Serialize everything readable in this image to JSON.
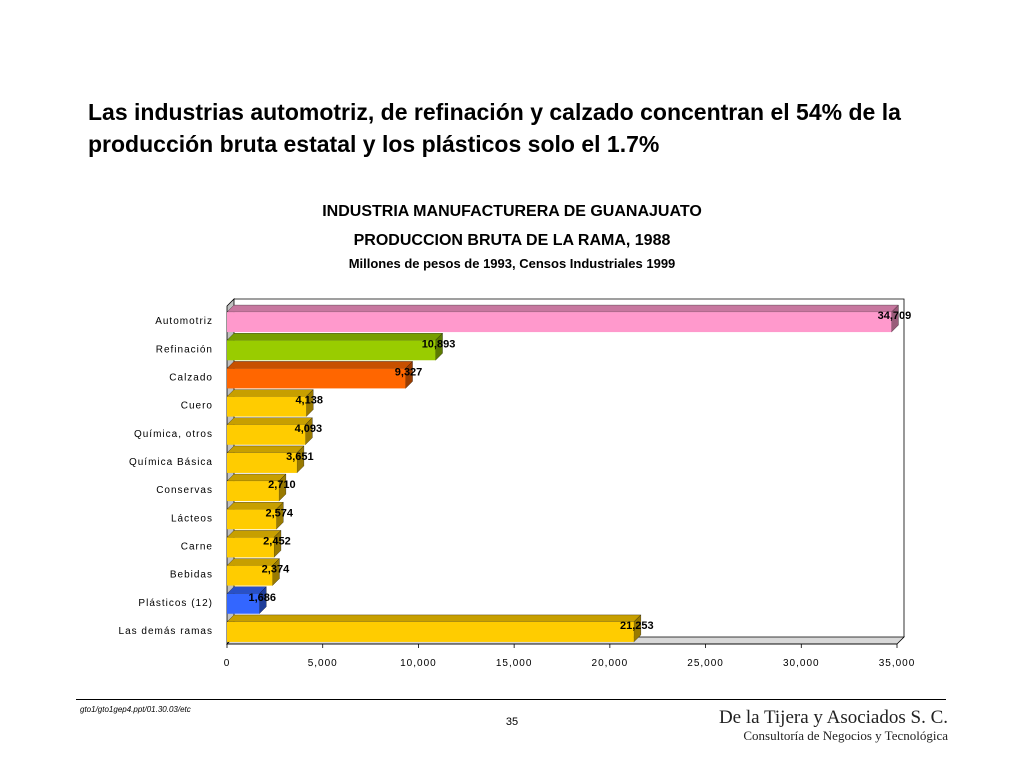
{
  "slide": {
    "headline": "Las industrias automotriz, de refinación y calzado concentran el 54% de la producción bruta estatal y los plásticos solo el 1.7%",
    "file_ref": "gto1/gto1gep4.ppt/01.30.03/etc",
    "page_number": "35",
    "company": "De la Tijera y Asociados S. C.",
    "tagline": "Consultoría de Negocios y Tecnológica"
  },
  "chart_data": {
    "type": "bar",
    "orientation": "horizontal",
    "title": "INDUSTRIA MANUFACTURERA DE GUANAJUATO",
    "subtitle": "PRODUCCION BRUTA DE LA RAMA, 1988",
    "unit_note": "Millones de pesos de 1993, Censos Industriales 1999",
    "categories": [
      "Automotriz",
      "Refinación",
      "Calzado",
      "Cuero",
      "Química, otros",
      "Química Básica",
      "Conservas",
      "Lácteos",
      "Carne",
      "Bebidas",
      "Plásticos (12)",
      "Las demás ramas"
    ],
    "values": [
      34709,
      10893,
      9327,
      4138,
      4093,
      3651,
      2710,
      2574,
      2452,
      2374,
      1686,
      21253
    ],
    "value_labels": [
      "34,709",
      "10,893",
      "9,327",
      "4,138",
      "4,093",
      "3,651",
      "2,710",
      "2,574",
      "2,452",
      "2,374",
      "1,686",
      "21,253"
    ],
    "colors": [
      "#ff99cc",
      "#99cc00",
      "#ff6600",
      "#ffcc00",
      "#ffcc00",
      "#ffcc00",
      "#ffcc00",
      "#ffcc00",
      "#ffcc00",
      "#ffcc00",
      "#3366ff",
      "#ffcc00"
    ],
    "xlim": [
      0,
      35000
    ],
    "x_ticks": [
      0,
      5000,
      10000,
      15000,
      20000,
      25000,
      30000,
      35000
    ],
    "x_tick_labels": [
      "0",
      "5,000",
      "10,000",
      "15,000",
      "20,000",
      "25,000",
      "30,000",
      "35,000"
    ],
    "grid": false,
    "legend": "none"
  }
}
